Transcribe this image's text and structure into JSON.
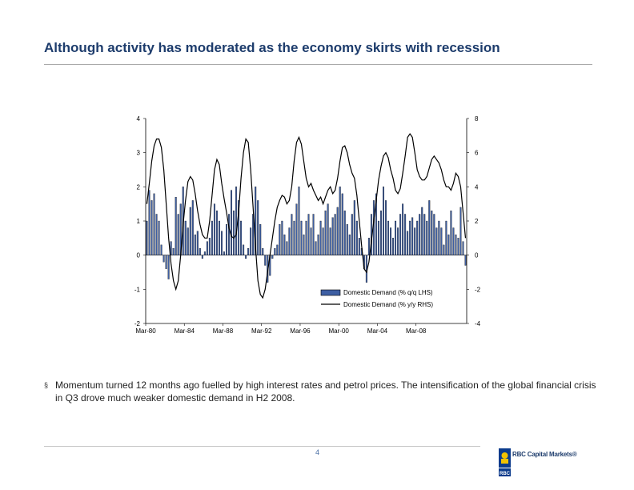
{
  "slide": {
    "title": "Although activity has moderated as the economy skirts with recession",
    "bullet": "Momentum turned 12 months ago fuelled by high interest rates and petrol prices. The intensification of the global financial crisis in Q3 drove much weaker domestic demand in H2 2008.",
    "bullet_marker": "§",
    "page_number": "4",
    "logo_emblem_text": "RBC",
    "logo_text": "RBC Capital Markets®"
  },
  "chart_data": {
    "type": "bar",
    "title": "",
    "x_tick_labels": [
      "Mar-80",
      "Mar-84",
      "Mar-88",
      "Mar-92",
      "Mar-96",
      "Mar-00",
      "Mar-04",
      "Mar-08"
    ],
    "y_left": {
      "range": [
        -2,
        4
      ],
      "ticks": [
        "4",
        "3",
        "2",
        "1",
        "0",
        "-1",
        "-2"
      ]
    },
    "y_right": {
      "range": [
        -4,
        8
      ],
      "ticks": [
        "8",
        "6",
        "4",
        "2",
        "0",
        "-2",
        "-4"
      ]
    },
    "grid": false,
    "legend_position": "bottom-right",
    "x_start": "Mar-80",
    "x_end": "Dec-08",
    "series": [
      {
        "name": "Domestic Demand (% q/q LHS)",
        "type": "bar",
        "axis": "left",
        "color": "#3e5fa3",
        "values": [
          1.0,
          1.9,
          1.6,
          1.8,
          1.2,
          1.0,
          0.3,
          -0.2,
          -0.4,
          -0.7,
          0.4,
          0.2,
          1.7,
          1.2,
          1.5,
          2.0,
          1.0,
          0.8,
          1.4,
          1.6,
          0.6,
          0.7,
          0.2,
          -0.1,
          0.1,
          0.4,
          0.5,
          1.0,
          1.5,
          1.3,
          1.0,
          0.7,
          0.1,
          0.9,
          1.2,
          1.9,
          1.3,
          2.0,
          1.6,
          1.0,
          0.3,
          -0.1,
          0.2,
          0.8,
          1.2,
          2.0,
          1.6,
          0.9,
          0.2,
          -0.3,
          -0.8,
          -0.6,
          -0.1,
          0.2,
          0.3,
          0.9,
          1.0,
          0.6,
          0.4,
          0.8,
          1.2,
          1.0,
          1.5,
          2.0,
          1.0,
          0.6,
          1.0,
          1.2,
          0.8,
          1.2,
          0.4,
          0.6,
          1.0,
          0.8,
          1.3,
          1.5,
          0.8,
          1.1,
          1.2,
          1.4,
          2.0,
          1.8,
          1.3,
          0.9,
          0.6,
          1.2,
          1.6,
          1.0,
          0.5,
          0.2,
          -0.4,
          -0.8,
          0.5,
          1.2,
          1.6,
          1.8,
          1.0,
          1.3,
          2.0,
          1.6,
          1.0,
          0.8,
          0.5,
          1.0,
          0.8,
          1.2,
          1.5,
          1.2,
          0.7,
          1.0,
          1.1,
          0.8,
          1.0,
          1.2,
          1.4,
          1.2,
          1.0,
          1.6,
          1.3,
          1.2,
          0.8,
          1.0,
          0.8,
          0.3,
          1.0,
          0.6,
          1.3,
          0.8,
          0.6,
          0.5,
          1.4,
          0.4,
          -0.3
        ]
      },
      {
        "name": "Domestic Demand (% y/y RHS)",
        "type": "line",
        "axis": "right",
        "color": "#000000",
        "values": [
          3.0,
          4.2,
          5.5,
          6.4,
          6.8,
          6.8,
          6.3,
          5.0,
          3.0,
          1.0,
          -0.5,
          -1.5,
          -2.0,
          -1.5,
          0.0,
          1.8,
          3.2,
          4.3,
          4.6,
          4.4,
          3.6,
          2.6,
          1.8,
          1.2,
          1.0,
          1.0,
          2.0,
          3.5,
          5.0,
          5.6,
          5.3,
          4.2,
          3.3,
          2.5,
          1.6,
          1.1,
          1.0,
          1.2,
          2.5,
          4.5,
          6.0,
          6.8,
          6.6,
          5.0,
          2.8,
          0.5,
          -1.5,
          -2.3,
          -2.5,
          -2.0,
          -1.0,
          0.0,
          1.0,
          2.0,
          2.8,
          3.2,
          3.5,
          3.4,
          3.0,
          3.2,
          4.0,
          5.5,
          6.6,
          6.9,
          6.5,
          5.5,
          4.5,
          4.0,
          4.2,
          3.8,
          3.5,
          3.2,
          3.4,
          3.0,
          3.4,
          3.8,
          4.0,
          3.6,
          3.8,
          4.5,
          5.5,
          6.3,
          6.4,
          6.0,
          5.3,
          4.8,
          4.5,
          3.5,
          2.0,
          0.5,
          -0.8,
          -1.0,
          -0.4,
          0.8,
          2.0,
          3.2,
          4.4,
          5.2,
          5.8,
          6.0,
          5.7,
          5.0,
          4.5,
          3.8,
          3.6,
          3.9,
          4.8,
          5.8,
          6.9,
          7.1,
          6.9,
          6.0,
          5.0,
          4.6,
          4.4,
          4.4,
          4.6,
          5.1,
          5.6,
          5.8,
          5.6,
          5.4,
          5.0,
          4.4,
          4.0,
          4.0,
          3.8,
          4.2,
          4.8,
          4.6,
          4.0,
          2.5,
          1.0
        ]
      }
    ]
  }
}
